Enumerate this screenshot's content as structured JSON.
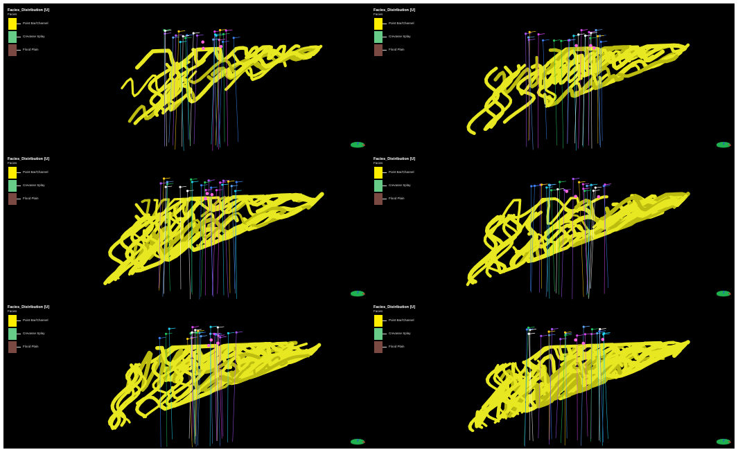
{
  "window": {
    "layout": "3x2 grid of 3D viewports"
  },
  "legend": {
    "title": "Facies_Distribution [U]",
    "subtitle": "Facies",
    "items": [
      {
        "label": "Point Bar/Channel",
        "color": "#ffee00"
      },
      {
        "label": "Crevasse Splay",
        "color": "#66cc88"
      },
      {
        "label": "Flood Plain",
        "color": "#7a4a42"
      }
    ]
  },
  "colors": {
    "background": "#000000",
    "channel_body": "#e8e822",
    "channel_body_dark": "#bcbc10",
    "well_colors": [
      "#22d3ee",
      "#a855f7",
      "#d946ef",
      "#3b82f6",
      "#22c55e",
      "#ffffff",
      "#facc15",
      "#60a5fa"
    ],
    "triad": [
      "#20b050",
      "#d03030",
      "#2050d0"
    ]
  },
  "viewports": [
    {
      "id": "realization-1"
    },
    {
      "id": "realization-2"
    },
    {
      "id": "realization-3"
    },
    {
      "id": "realization-4"
    },
    {
      "id": "realization-5"
    },
    {
      "id": "realization-6"
    }
  ]
}
